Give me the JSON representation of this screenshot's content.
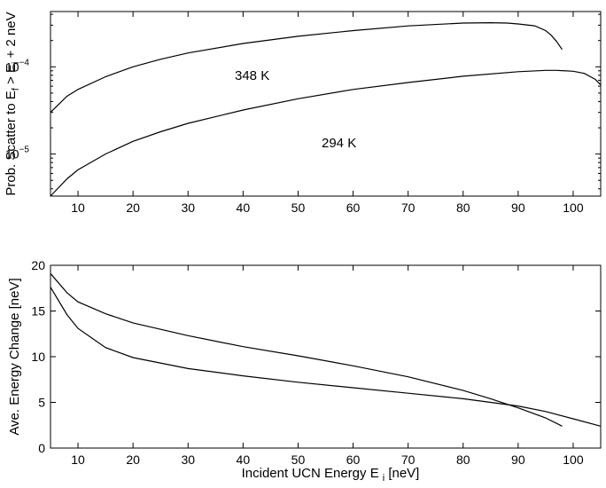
{
  "chart_data": [
    {
      "type": "line",
      "title": "",
      "xlabel": "",
      "ylabel": {
        "main": "Prob. Scatter to E",
        "sub1": "f",
        "mid": " > E",
        "sub2": "i",
        "tail": " + 2 neV"
      },
      "xlim": [
        5,
        105
      ],
      "ylim": [
        3.3e-06,
        0.00043
      ],
      "yscale": "log",
      "x_ticks": [
        10,
        20,
        30,
        40,
        50,
        60,
        70,
        80,
        90,
        100
      ],
      "y_ticks": [
        {
          "base": "10",
          "exp": "−5",
          "value": 1e-05
        },
        {
          "base": "10",
          "exp": "−4",
          "value": 0.0001
        }
      ],
      "grid": false,
      "annotations": [
        {
          "text": "348 K",
          "x": 44,
          "y": 0.000105
        },
        {
          "text": "294 K",
          "x": 59,
          "y": 1.4e-05
        }
      ],
      "series": [
        {
          "x": [
            5,
            8,
            10,
            15,
            20,
            25,
            30,
            40,
            50,
            60,
            70,
            80,
            85,
            88,
            90,
            93,
            95,
            96,
            97,
            98
          ],
          "y": [
            3e-05,
            4.6e-05,
            5.5e-05,
            7.7e-05,
            0.0001,
            0.000122,
            0.000144,
            0.000185,
            0.000224,
            0.00026,
            0.000294,
            0.000317,
            0.00032,
            0.000317,
            0.00031,
            0.000295,
            0.00026,
            0.00023,
            0.000195,
            0.000158
          ]
        },
        {
          "x": [
            5,
            8,
            10,
            15,
            20,
            25,
            30,
            40,
            50,
            60,
            70,
            80,
            90,
            95,
            97,
            100,
            102,
            104,
            105
          ],
          "y": [
            3.3e-06,
            5.2e-06,
            6.6e-06,
            1e-05,
            1.4e-05,
            1.8e-05,
            2.25e-05,
            3.2e-05,
            4.3e-05,
            5.5e-05,
            6.6e-05,
            7.8e-05,
            8.8e-05,
            9.1e-05,
            9.1e-05,
            8.9e-05,
            8.4e-05,
            7.2e-05,
            6.2e-05
          ]
        }
      ]
    },
    {
      "type": "line",
      "title": "",
      "xlabel": {
        "main": "Incident UCN Energy E",
        "sub": "i",
        "tail": " [neV]"
      },
      "ylabel": "Ave. Energy Change [neV]",
      "xlim": [
        5,
        105
      ],
      "ylim": [
        0,
        20
      ],
      "x_ticks": [
        10,
        20,
        30,
        40,
        50,
        60,
        70,
        80,
        90,
        100
      ],
      "y_ticks": [
        0,
        5,
        10,
        15,
        20
      ],
      "grid": false,
      "series": [
        {
          "x": [
            5,
            8,
            10,
            15,
            20,
            30,
            40,
            50,
            60,
            70,
            80,
            85,
            90,
            95,
            98
          ],
          "y": [
            19.1,
            17.0,
            16.0,
            14.7,
            13.7,
            12.3,
            11.1,
            10.1,
            9.0,
            7.8,
            6.3,
            5.4,
            4.4,
            3.3,
            2.4
          ]
        },
        {
          "x": [
            5,
            8,
            10,
            15,
            20,
            30,
            40,
            50,
            60,
            70,
            80,
            90,
            95,
            100,
            105
          ],
          "y": [
            17.6,
            14.6,
            13.1,
            11.0,
            9.9,
            8.7,
            7.9,
            7.2,
            6.6,
            6.0,
            5.4,
            4.6,
            4.0,
            3.2,
            2.4
          ]
        }
      ]
    }
  ]
}
